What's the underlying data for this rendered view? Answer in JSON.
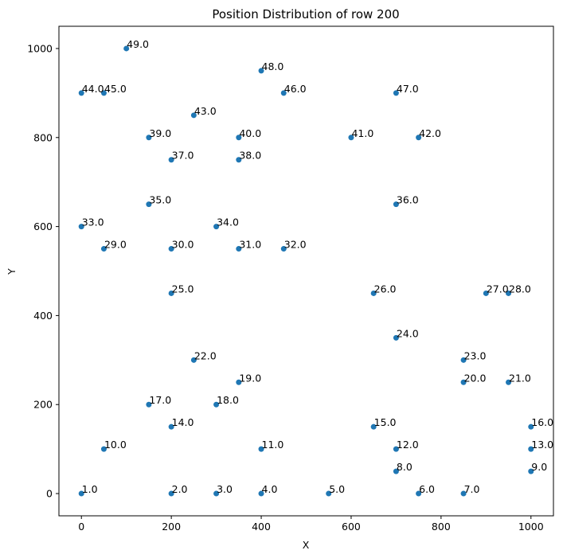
{
  "chart_data": {
    "type": "scatter",
    "title": "Position Distribution of row 200",
    "xlabel": "X",
    "ylabel": "Y",
    "xlim": [
      -50,
      1050
    ],
    "ylim": [
      -50,
      1050
    ],
    "xticks": [
      0,
      200,
      400,
      600,
      800,
      1000
    ],
    "yticks": [
      0,
      200,
      400,
      600,
      800,
      1000
    ],
    "grid": false,
    "marker_color": "#1f77b4",
    "points": [
      {
        "x": 0,
        "y": 0,
        "label": "1.0"
      },
      {
        "x": 200,
        "y": 0,
        "label": "2.0"
      },
      {
        "x": 300,
        "y": 0,
        "label": "3.0"
      },
      {
        "x": 400,
        "y": 0,
        "label": "4.0"
      },
      {
        "x": 550,
        "y": 0,
        "label": "5.0"
      },
      {
        "x": 750,
        "y": 0,
        "label": "6.0"
      },
      {
        "x": 850,
        "y": 0,
        "label": "7.0"
      },
      {
        "x": 700,
        "y": 50,
        "label": "8.0"
      },
      {
        "x": 1000,
        "y": 50,
        "label": "9.0"
      },
      {
        "x": 50,
        "y": 100,
        "label": "10.0"
      },
      {
        "x": 400,
        "y": 100,
        "label": "11.0"
      },
      {
        "x": 700,
        "y": 100,
        "label": "12.0"
      },
      {
        "x": 1000,
        "y": 100,
        "label": "13.0"
      },
      {
        "x": 200,
        "y": 150,
        "label": "14.0"
      },
      {
        "x": 650,
        "y": 150,
        "label": "15.0"
      },
      {
        "x": 1000,
        "y": 150,
        "label": "16.0"
      },
      {
        "x": 150,
        "y": 200,
        "label": "17.0"
      },
      {
        "x": 300,
        "y": 200,
        "label": "18.0"
      },
      {
        "x": 350,
        "y": 250,
        "label": "19.0"
      },
      {
        "x": 850,
        "y": 250,
        "label": "20.0"
      },
      {
        "x": 950,
        "y": 250,
        "label": "21.0"
      },
      {
        "x": 250,
        "y": 300,
        "label": "22.0"
      },
      {
        "x": 850,
        "y": 300,
        "label": "23.0"
      },
      {
        "x": 700,
        "y": 350,
        "label": "24.0"
      },
      {
        "x": 200,
        "y": 450,
        "label": "25.0"
      },
      {
        "x": 650,
        "y": 450,
        "label": "26.0"
      },
      {
        "x": 900,
        "y": 450,
        "label": "27.0"
      },
      {
        "x": 950,
        "y": 450,
        "label": "28.0"
      },
      {
        "x": 50,
        "y": 550,
        "label": "29.0"
      },
      {
        "x": 200,
        "y": 550,
        "label": "30.0"
      },
      {
        "x": 350,
        "y": 550,
        "label": "31.0"
      },
      {
        "x": 450,
        "y": 550,
        "label": "32.0"
      },
      {
        "x": 0,
        "y": 600,
        "label": "33.0"
      },
      {
        "x": 300,
        "y": 600,
        "label": "34.0"
      },
      {
        "x": 150,
        "y": 650,
        "label": "35.0"
      },
      {
        "x": 700,
        "y": 650,
        "label": "36.0"
      },
      {
        "x": 200,
        "y": 750,
        "label": "37.0"
      },
      {
        "x": 350,
        "y": 750,
        "label": "38.0"
      },
      {
        "x": 150,
        "y": 800,
        "label": "39.0"
      },
      {
        "x": 350,
        "y": 800,
        "label": "40.0"
      },
      {
        "x": 600,
        "y": 800,
        "label": "41.0"
      },
      {
        "x": 750,
        "y": 800,
        "label": "42.0"
      },
      {
        "x": 250,
        "y": 850,
        "label": "43.0"
      },
      {
        "x": 0,
        "y": 900,
        "label": "44.0"
      },
      {
        "x": 50,
        "y": 900,
        "label": "45.0"
      },
      {
        "x": 450,
        "y": 900,
        "label": "46.0"
      },
      {
        "x": 700,
        "y": 900,
        "label": "47.0"
      },
      {
        "x": 400,
        "y": 950,
        "label": "48.0"
      },
      {
        "x": 100,
        "y": 1000,
        "label": "49.0"
      }
    ]
  }
}
